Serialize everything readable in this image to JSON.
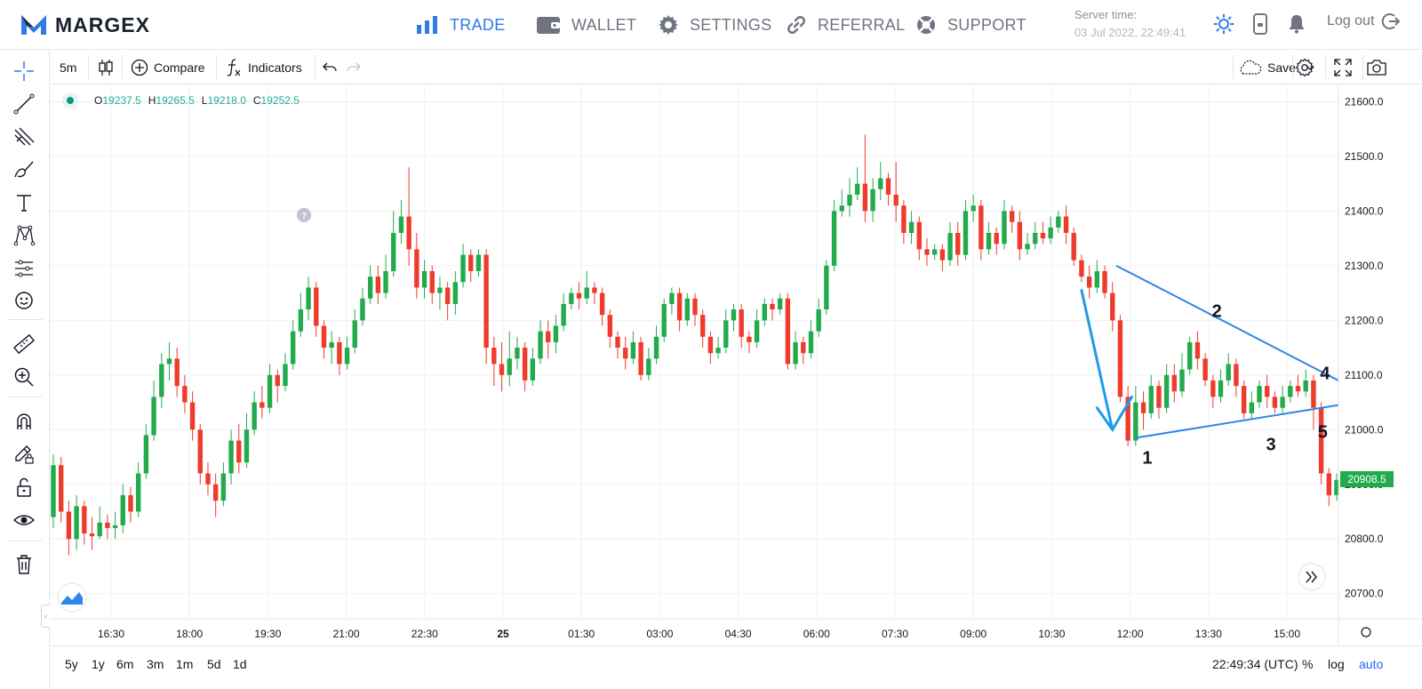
{
  "brand": {
    "name": "MARGEX",
    "accent": "#2f7ae5"
  },
  "nav": {
    "items": [
      {
        "label": "TRADE",
        "icon": "bar-chart-icon",
        "active": true
      },
      {
        "label": "WALLET",
        "icon": "wallet-icon",
        "active": false
      },
      {
        "label": "SETTINGS",
        "icon": "gear-icon",
        "active": false
      },
      {
        "label": "REFERRAL",
        "icon": "link-icon",
        "active": false
      },
      {
        "label": "SUPPORT",
        "icon": "lifebuoy-icon",
        "active": false
      }
    ],
    "server_label": "Server time:",
    "server_time": "03 Jul 2022, 22:49:41",
    "logout_label": "Log out"
  },
  "toolbar": {
    "interval": "5m",
    "compare_label": "Compare",
    "indicators_label": "Indicators",
    "save_label": "Save"
  },
  "legend": {
    "o_label": "O",
    "o": "19237.5",
    "h_label": "H",
    "h": "19265.5",
    "l_label": "L",
    "l": "19218.0",
    "c_label": "C",
    "c": "19252.5"
  },
  "chart_data": {
    "type": "candlestick",
    "time_labels": [
      "16:30",
      "18:00",
      "19:30",
      "21:00",
      "22:30",
      "25",
      "01:30",
      "03:00",
      "04:30",
      "06:00",
      "07:30",
      "09:00",
      "10:30",
      "12:00",
      "13:30",
      "15:00"
    ],
    "price_ticks": [
      21600,
      21500,
      21400,
      21300,
      21200,
      21100,
      21000,
      20900,
      20800,
      20700
    ],
    "price_tick_labels": [
      "21600.0",
      "21500.0",
      "21400.0",
      "21300.0",
      "21200.0",
      "21100.0",
      "21000.0",
      "20900.0",
      "20800.0",
      "20700.0"
    ],
    "ylim": [
      20654,
      21630
    ],
    "last_price": "20908.5",
    "up_color": "#22ab4c",
    "down_color": "#ef3b2c",
    "annotation_color": "#2e86e8",
    "annotations": [
      "1",
      "2",
      "3",
      "4",
      "5"
    ],
    "candles": [
      [
        20840,
        20935,
        20820,
        20955
      ],
      [
        20935,
        20850,
        20830,
        20950
      ],
      [
        20850,
        20800,
        20770,
        20870
      ],
      [
        20800,
        20860,
        20780,
        20880
      ],
      [
        20860,
        20810,
        20790,
        20870
      ],
      [
        20810,
        20805,
        20780,
        20840
      ],
      [
        20805,
        20830,
        20800,
        20860
      ],
      [
        20830,
        20820,
        20800,
        20845
      ],
      [
        20820,
        20825,
        20800,
        20850
      ],
      [
        20825,
        20880,
        20810,
        20900
      ],
      [
        20880,
        20850,
        20830,
        20895
      ],
      [
        20850,
        20920,
        20840,
        20940
      ],
      [
        20920,
        20990,
        20910,
        21010
      ],
      [
        20990,
        21060,
        20980,
        21090
      ],
      [
        21060,
        21120,
        21040,
        21140
      ],
      [
        21120,
        21130,
        21090,
        21160
      ],
      [
        21130,
        21080,
        21060,
        21150
      ],
      [
        21080,
        21050,
        21030,
        21100
      ],
      [
        21050,
        21000,
        20980,
        21070
      ],
      [
        21000,
        20920,
        20900,
        21010
      ],
      [
        20920,
        20900,
        20880,
        20940
      ],
      [
        20900,
        20870,
        20840,
        20920
      ],
      [
        20870,
        20920,
        20860,
        20940
      ],
      [
        20920,
        20980,
        20900,
        21000
      ],
      [
        20980,
        20940,
        20920,
        21010
      ],
      [
        20940,
        21000,
        20930,
        21030
      ],
      [
        21000,
        21050,
        20990,
        21070
      ],
      [
        21050,
        21040,
        21020,
        21080
      ],
      [
        21040,
        21100,
        21030,
        21120
      ],
      [
        21100,
        21080,
        21050,
        21110
      ],
      [
        21080,
        21120,
        21070,
        21140
      ],
      [
        21120,
        21180,
        21110,
        21200
      ],
      [
        21180,
        21220,
        21170,
        21250
      ],
      [
        21220,
        21260,
        21200,
        21280
      ],
      [
        21260,
        21190,
        21170,
        21270
      ],
      [
        21190,
        21150,
        21130,
        21200
      ],
      [
        21150,
        21160,
        21120,
        21180
      ],
      [
        21160,
        21120,
        21100,
        21170
      ],
      [
        21120,
        21150,
        21110,
        21170
      ],
      [
        21150,
        21200,
        21140,
        21220
      ],
      [
        21200,
        21240,
        21190,
        21260
      ],
      [
        21240,
        21280,
        21230,
        21300
      ],
      [
        21280,
        21250,
        21230,
        21300
      ],
      [
        21250,
        21290,
        21240,
        21320
      ],
      [
        21290,
        21360,
        21280,
        21400
      ],
      [
        21360,
        21390,
        21340,
        21420
      ],
      [
        21390,
        21330,
        21300,
        21480
      ],
      [
        21330,
        21260,
        21240,
        21360
      ],
      [
        21260,
        21290,
        21240,
        21310
      ],
      [
        21290,
        21250,
        21230,
        21300
      ],
      [
        21250,
        21260,
        21220,
        21280
      ],
      [
        21260,
        21230,
        21200,
        21270
      ],
      [
        21230,
        21270,
        21210,
        21290
      ],
      [
        21270,
        21320,
        21260,
        21340
      ],
      [
        21320,
        21290,
        21270,
        21330
      ],
      [
        21290,
        21320,
        21280,
        21330
      ],
      [
        21320,
        21150,
        21120,
        21330
      ],
      [
        21150,
        21120,
        21080,
        21170
      ],
      [
        21120,
        21100,
        21070,
        21160
      ],
      [
        21100,
        21130,
        21080,
        21180
      ],
      [
        21130,
        21150,
        21110,
        21170
      ],
      [
        21150,
        21090,
        21070,
        21160
      ],
      [
        21090,
        21130,
        21080,
        21150
      ],
      [
        21130,
        21180,
        21120,
        21200
      ],
      [
        21180,
        21160,
        21130,
        21200
      ],
      [
        21160,
        21190,
        21140,
        21210
      ],
      [
        21190,
        21230,
        21180,
        21250
      ],
      [
        21230,
        21250,
        21220,
        21260
      ],
      [
        21250,
        21240,
        21220,
        21270
      ],
      [
        21240,
        21260,
        21230,
        21290
      ],
      [
        21260,
        21250,
        21230,
        21270
      ],
      [
        21250,
        21210,
        21190,
        21260
      ],
      [
        21210,
        21170,
        21150,
        21220
      ],
      [
        21170,
        21150,
        21130,
        21180
      ],
      [
        21150,
        21130,
        21110,
        21170
      ],
      [
        21130,
        21160,
        21120,
        21180
      ],
      [
        21160,
        21100,
        21090,
        21170
      ],
      [
        21100,
        21130,
        21090,
        21150
      ],
      [
        21130,
        21170,
        21120,
        21190
      ],
      [
        21170,
        21230,
        21160,
        21240
      ],
      [
        21230,
        21250,
        21210,
        21260
      ],
      [
        21250,
        21200,
        21180,
        21260
      ],
      [
        21200,
        21240,
        21190,
        21250
      ],
      [
        21240,
        21210,
        21190,
        21250
      ],
      [
        21210,
        21170,
        21150,
        21220
      ],
      [
        21170,
        21140,
        21120,
        21180
      ],
      [
        21140,
        21150,
        21130,
        21170
      ],
      [
        21150,
        21200,
        21140,
        21220
      ],
      [
        21200,
        21220,
        21180,
        21230
      ],
      [
        21220,
        21170,
        21150,
        21230
      ],
      [
        21170,
        21160,
        21140,
        21180
      ],
      [
        21160,
        21200,
        21150,
        21220
      ],
      [
        21200,
        21230,
        21190,
        21240
      ],
      [
        21230,
        21220,
        21200,
        21240
      ],
      [
        21220,
        21240,
        21210,
        21250
      ],
      [
        21240,
        21120,
        21110,
        21250
      ],
      [
        21120,
        21160,
        21110,
        21180
      ],
      [
        21160,
        21140,
        21120,
        21170
      ],
      [
        21140,
        21180,
        21130,
        21200
      ],
      [
        21180,
        21220,
        21170,
        21240
      ],
      [
        21220,
        21300,
        21210,
        21310
      ],
      [
        21300,
        21400,
        21290,
        21420
      ],
      [
        21400,
        21410,
        21390,
        21440
      ],
      [
        21410,
        21430,
        21390,
        21460
      ],
      [
        21430,
        21450,
        21420,
        21480
      ],
      [
        21450,
        21400,
        21380,
        21540
      ],
      [
        21400,
        21440,
        21380,
        21460
      ],
      [
        21440,
        21460,
        21420,
        21490
      ],
      [
        21460,
        21430,
        21410,
        21470
      ],
      [
        21430,
        21410,
        21380,
        21490
      ],
      [
        21410,
        21360,
        21340,
        21420
      ],
      [
        21360,
        21380,
        21340,
        21400
      ],
      [
        21380,
        21330,
        21310,
        21390
      ],
      [
        21330,
        21320,
        21300,
        21350
      ],
      [
        21320,
        21330,
        21310,
        21340
      ],
      [
        21330,
        21310,
        21290,
        21340
      ],
      [
        21310,
        21360,
        21300,
        21380
      ],
      [
        21360,
        21320,
        21300,
        21380
      ],
      [
        21320,
        21400,
        21310,
        21420
      ],
      [
        21400,
        21410,
        21380,
        21430
      ],
      [
        21410,
        21330,
        21310,
        21420
      ],
      [
        21330,
        21360,
        21320,
        21380
      ],
      [
        21360,
        21340,
        21320,
        21370
      ],
      [
        21340,
        21400,
        21330,
        21420
      ],
      [
        21400,
        21380,
        21360,
        21410
      ],
      [
        21380,
        21330,
        21310,
        21400
      ],
      [
        21330,
        21340,
        21320,
        21360
      ],
      [
        21340,
        21360,
        21330,
        21380
      ],
      [
        21360,
        21350,
        21340,
        21380
      ],
      [
        21350,
        21370,
        21340,
        21390
      ],
      [
        21370,
        21390,
        21360,
        21400
      ],
      [
        21390,
        21360,
        21340,
        21410
      ],
      [
        21360,
        21310,
        21300,
        21370
      ],
      [
        21310,
        21280,
        21270,
        21320
      ],
      [
        21280,
        21260,
        21240,
        21300
      ],
      [
        21260,
        21290,
        21250,
        21310
      ],
      [
        21290,
        21250,
        21240,
        21300
      ],
      [
        21250,
        21200,
        21180,
        21270
      ],
      [
        21200,
        21060,
        21050,
        21210
      ],
      [
        21060,
        20980,
        20970,
        21080
      ],
      [
        20980,
        21050,
        20970,
        21080
      ],
      [
        21050,
        21030,
        21000,
        21070
      ],
      [
        21030,
        21080,
        21020,
        21100
      ],
      [
        21080,
        21040,
        21020,
        21090
      ],
      [
        21040,
        21100,
        21030,
        21120
      ],
      [
        21100,
        21070,
        21050,
        21120
      ],
      [
        21070,
        21110,
        21060,
        21140
      ],
      [
        21110,
        21160,
        21100,
        21170
      ],
      [
        21160,
        21130,
        21110,
        21180
      ],
      [
        21130,
        21090,
        21080,
        21140
      ],
      [
        21090,
        21060,
        21040,
        21100
      ],
      [
        21060,
        21090,
        21050,
        21110
      ],
      [
        21090,
        21120,
        21080,
        21140
      ],
      [
        21120,
        21080,
        21060,
        21130
      ],
      [
        21080,
        21030,
        21020,
        21090
      ],
      [
        21030,
        21050,
        21020,
        21070
      ],
      [
        21050,
        21080,
        21040,
        21090
      ],
      [
        21080,
        21060,
        21040,
        21100
      ],
      [
        21060,
        21040,
        21030,
        21070
      ],
      [
        21040,
        21060,
        21030,
        21080
      ],
      [
        21060,
        21080,
        21050,
        21090
      ],
      [
        21080,
        21070,
        21060,
        21100
      ],
      [
        21070,
        21090,
        21060,
        21110
      ],
      [
        21090,
        21040,
        21000,
        21100
      ],
      [
        21040,
        20920,
        20900,
        21050
      ],
      [
        20920,
        20880,
        20860,
        20930
      ],
      [
        20880,
        20908,
        20870,
        20920
      ]
    ]
  },
  "range_buttons": [
    "5y",
    "1y",
    "6m",
    "3m",
    "1m",
    "5d",
    "1d"
  ],
  "bottom_bar": {
    "clock": "22:49:34 (UTC)",
    "percent": "%",
    "log": "log",
    "auto": "auto"
  }
}
